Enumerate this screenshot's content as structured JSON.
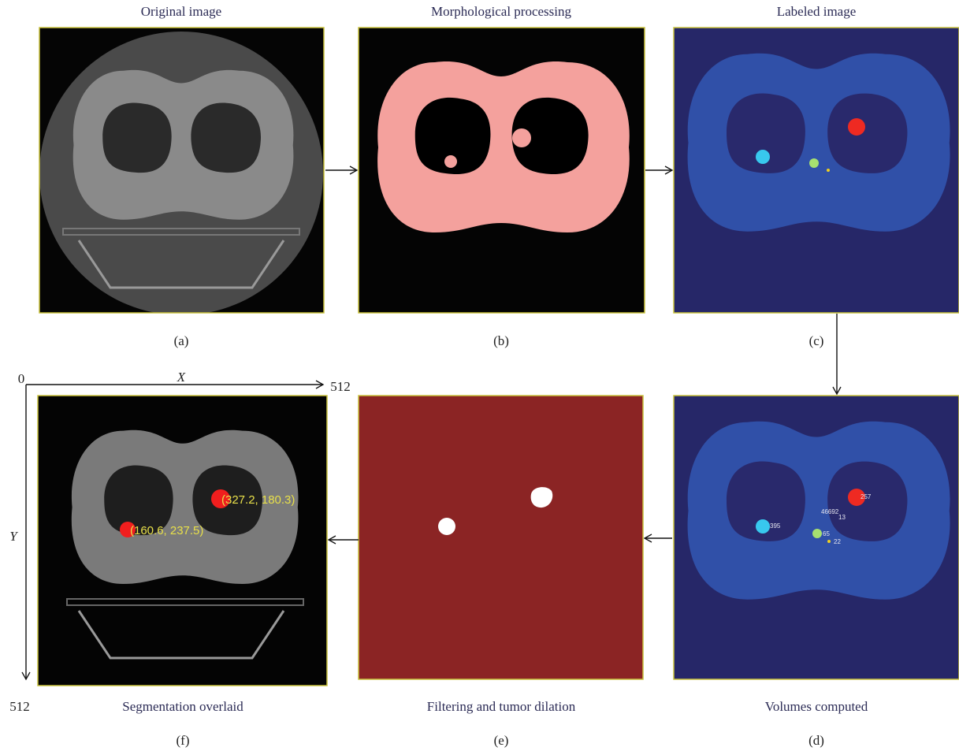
{
  "panels": [
    {
      "title": "Original image",
      "caption": "(a)"
    },
    {
      "title": "Morphological processing",
      "caption": "(b)"
    },
    {
      "title": "Labeled image",
      "caption": "(c)"
    },
    {
      "title": "Volumes computed",
      "caption": "(d)",
      "labels": [
        "257",
        "46692",
        "13",
        "395",
        "65",
        "22"
      ]
    },
    {
      "title": "Filtering and tumor dilation",
      "caption": "(e)"
    },
    {
      "title": "Segmentation overlaid",
      "caption": "(f)",
      "labels": [
        "(327.2, 180.3)",
        "(160.6, 237.5)"
      ]
    }
  ],
  "axes": {
    "origin": "0",
    "x_label": "X",
    "x_max": "512",
    "y_label": "Y",
    "y_max": "512"
  }
}
